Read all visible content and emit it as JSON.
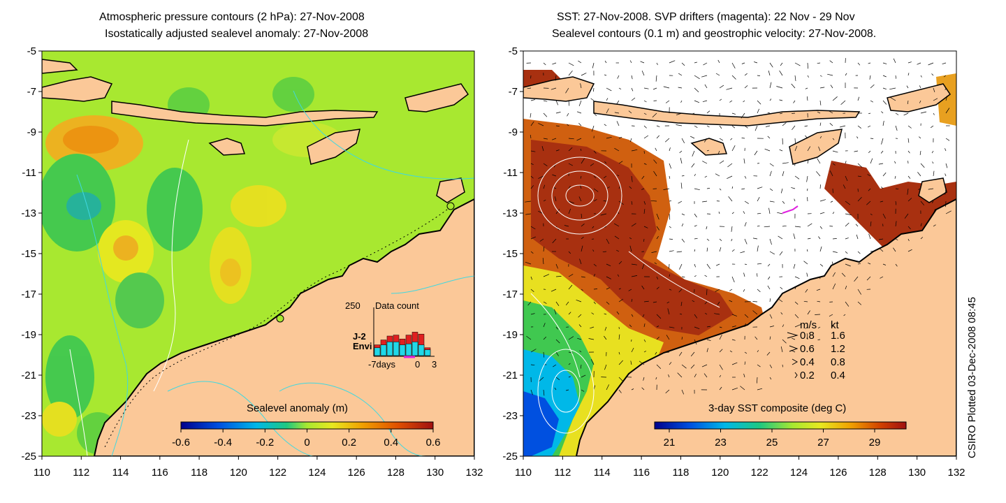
{
  "left_panel": {
    "title_line1": "Atmospheric pressure contours (2 hPa): 27-Nov-2008",
    "title_line2": "Isostatically adjusted sealevel anomaly: 27-Nov-2008",
    "colorbar_title": "Sealevel anomaly (m)",
    "colorbar_ticks": [
      "-0.6",
      "-0.4",
      "-0.2",
      "0",
      "0.2",
      "0.4",
      "0.6"
    ],
    "x_ticks": [
      "110",
      "112",
      "114",
      "116",
      "118",
      "120",
      "122",
      "124",
      "126",
      "128",
      "130",
      "132"
    ],
    "y_ticks": [
      "-5",
      "-7",
      "-9",
      "-11",
      "-13",
      "-15",
      "-17",
      "-19",
      "-21",
      "-23",
      "-25"
    ],
    "inset": {
      "max_label": "250",
      "title": "Data count",
      "series1_label": "J-2",
      "series2_label": "Envi",
      "xlabel_start": "-7days",
      "xlabel_zero": "0",
      "xlabel_end": "3",
      "series1_color": "#e02020",
      "series2_color": "#20d8e8",
      "counts_j2": [
        55,
        80,
        100,
        105,
        85,
        105,
        120,
        110,
        40
      ],
      "counts_envi": [
        40,
        55,
        70,
        70,
        55,
        60,
        70,
        55,
        30
      ]
    }
  },
  "right_panel": {
    "title_line1": "SST: 27-Nov-2008. SVP drifters (magenta): 22 Nov - 29 Nov",
    "title_line2": "Sealevel contours (0.1 m) and geostrophic velocity: 27-Nov-2008.",
    "colorbar_title": "3-day SST composite (deg C)",
    "colorbar_ticks": [
      "21",
      "23",
      "25",
      "27",
      "29"
    ],
    "x_ticks": [
      "110",
      "112",
      "114",
      "116",
      "118",
      "120",
      "122",
      "124",
      "126",
      "128",
      "130",
      "132"
    ],
    "y_ticks": [
      "-5",
      "-7",
      "-9",
      "-11",
      "-13",
      "-15",
      "-17",
      "-19",
      "-21",
      "-23",
      "-25"
    ],
    "velocity_legend": {
      "header_ms": "m/s",
      "header_kt": "kt",
      "rows": [
        {
          "ms": "0.8",
          "kt": "1.6"
        },
        {
          "ms": "0.6",
          "kt": "1.2"
        },
        {
          "ms": "0.4",
          "kt": "0.8"
        },
        {
          "ms": "0.2",
          "kt": "0.4"
        }
      ]
    }
  },
  "credit": "CSIRO Plotted 03-Dec-2008 08:45",
  "colors": {
    "land": "#fbc898",
    "ocean_green": "#a8e830",
    "sst_red": "#a83010"
  }
}
